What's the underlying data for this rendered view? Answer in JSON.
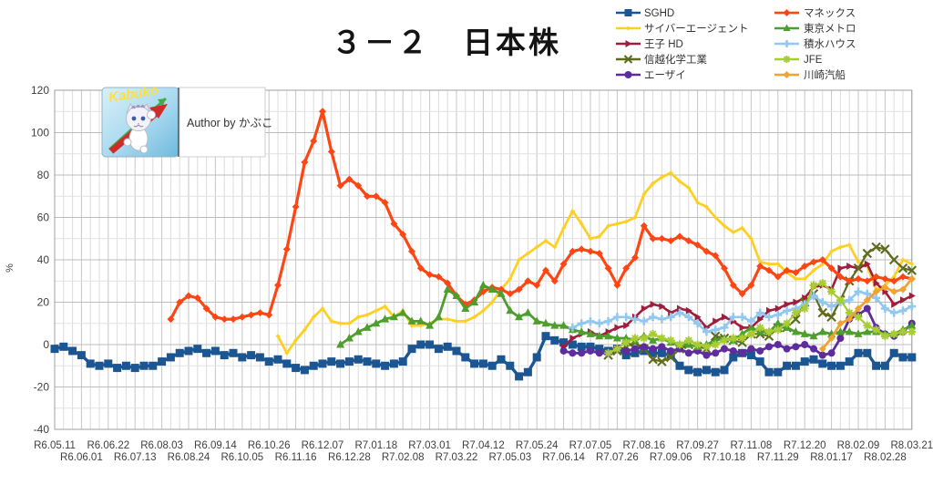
{
  "title": "３－２　日本株",
  "logo": {
    "badge_text": "Kabuko",
    "author_text": "Author by かぶこ"
  },
  "chart_data": {
    "type": "line",
    "title": "３－２　日本株",
    "xlabel": "",
    "ylabel": "%",
    "ylim": [
      -40,
      120
    ],
    "ytick_step": 20,
    "y_minor_step": 10,
    "grid": true,
    "legend_position": "top-right",
    "n_points": 97,
    "x_label_every": 3,
    "x_labels": [
      "R6.05.11",
      "R6.06.01",
      "R6.06.22",
      "R6.07.13",
      "R6.08.03",
      "R6.08.24",
      "R6.09.14",
      "R6.10.05",
      "R6.10.26",
      "R6.11.16",
      "R6.12.07",
      "R6.12.28",
      "R7.01.18",
      "R7.02.08",
      "R7.03.01",
      "R7.03.22",
      "R7.04.12",
      "R7.05.03",
      "R7.05.24",
      "R7.06.14",
      "R7.07.05",
      "R7.07.26",
      "R7.08.16",
      "R7.09.06",
      "R7.09.27",
      "R7.10.18",
      "R7.11.08",
      "R7.11.29",
      "R7.12.20",
      "R8.01.17",
      "R8.02.09",
      "R8.02.28",
      "R8.03.21"
    ],
    "series": [
      {
        "key": "sghd",
        "name": "SGHD",
        "color": "#1b5693",
        "marker": "square",
        "line_width": 3.4,
        "marker_size": 9,
        "start": 0,
        "values": [
          -2,
          -1,
          -3,
          -5,
          -9,
          -10,
          -9,
          -11,
          -10,
          -11,
          -10,
          -10,
          -8,
          -6,
          -4,
          -3,
          -2,
          -4,
          -3,
          -5,
          -4,
          -6,
          -5,
          -6,
          -8,
          -7,
          -9,
          -11,
          -12,
          -10,
          -9,
          -8,
          -9,
          -8,
          -7,
          -8,
          -9,
          -10,
          -9,
          -8,
          -2,
          0,
          0,
          -2,
          -1,
          -3,
          -6,
          -9,
          -9,
          -10,
          -7,
          -10,
          -15,
          -13,
          -6,
          4,
          2,
          1,
          0,
          -1,
          -1,
          -2,
          -3,
          -2,
          -5,
          -4,
          -3,
          -4,
          -4,
          -5,
          -10,
          -12,
          -13,
          -12,
          -13,
          -12,
          -6,
          -4,
          -5,
          -8,
          -13,
          -13,
          -10,
          -10,
          -8,
          -7,
          -9,
          -10,
          -10,
          -8,
          -4,
          -4,
          -10,
          -10,
          -4,
          -6,
          -6
        ]
      },
      {
        "key": "cyber_agent",
        "name": "サイバーエージェント",
        "color": "#fdd023",
        "marker": "diamond-small",
        "line_width": 2.8,
        "marker_size": 5,
        "start": 25,
        "values": [
          4,
          -4,
          2,
          7,
          13,
          17,
          11,
          10,
          10,
          13,
          14,
          16,
          18,
          13,
          16,
          9,
          9,
          10,
          12,
          12,
          11,
          11,
          13,
          16,
          20,
          26,
          31,
          40,
          43,
          46,
          49,
          46,
          55,
          63,
          57,
          50,
          51,
          56,
          57,
          58,
          60,
          71,
          76,
          79,
          81,
          77,
          74,
          67,
          65,
          60,
          56,
          53,
          55,
          50,
          39,
          38,
          38,
          34,
          31,
          31,
          35,
          38,
          44,
          46,
          47,
          39,
          37,
          26,
          28,
          32,
          40,
          38
        ]
      },
      {
        "key": "oji_hd",
        "name": "王子 HD",
        "color": "#9e1f3d",
        "marker": "triangle-right",
        "line_width": 2.6,
        "marker_size": 8,
        "start": 57,
        "values": [
          -1,
          3,
          5,
          6,
          4,
          6,
          8,
          9,
          13,
          17,
          19,
          18,
          15,
          17,
          16,
          13,
          8,
          11,
          13,
          11,
          8,
          8,
          12,
          16,
          17,
          19,
          20,
          22,
          27,
          28,
          26,
          36,
          37,
          36,
          38,
          29,
          25,
          19,
          21,
          23
        ]
      },
      {
        "key": "shinetsu_chemical",
        "name": "信越化学工業",
        "color": "#5f6b1d",
        "marker": "x",
        "line_width": 2.2,
        "marker_size": 9,
        "start": 62,
        "values": [
          -5,
          -3,
          -1,
          1,
          -2,
          -7,
          -8,
          -6,
          -2,
          0,
          -1,
          -2,
          4,
          3,
          2,
          1,
          5,
          5,
          4,
          8,
          8,
          12,
          20,
          24,
          15,
          13,
          21,
          30,
          36,
          43,
          46,
          45,
          40,
          36,
          35
        ]
      },
      {
        "key": "eisai",
        "name": "エーザイ",
        "color": "#5e2c9c",
        "marker": "circle",
        "line_width": 2.8,
        "marker_size": 8,
        "start": 57,
        "values": [
          -3,
          -4,
          -4,
          -3,
          -4,
          -4,
          -2,
          -3,
          -2,
          -1,
          -2,
          -1,
          -3,
          -2,
          -4,
          -3,
          -5,
          -4,
          -2,
          -3,
          -4,
          -2,
          -3,
          -1,
          0,
          -2,
          -1,
          0,
          -2,
          -5,
          -4,
          3,
          12,
          14,
          17,
          8,
          5,
          4,
          6,
          10
        ]
      },
      {
        "key": "monex",
        "name": "マネックス",
        "color": "#fd4614",
        "marker": "diamond",
        "line_width": 3.2,
        "marker_size": 8,
        "start": 13,
        "values": [
          12,
          20,
          23,
          22,
          17,
          13,
          12,
          12,
          13,
          14,
          15,
          14,
          28,
          45,
          65,
          86,
          96,
          110,
          91,
          75,
          78,
          75,
          70,
          70,
          67,
          57,
          52,
          44,
          36,
          33,
          32,
          29,
          23,
          19,
          21,
          25,
          27,
          26,
          24,
          26,
          30,
          28,
          35,
          30,
          38,
          44,
          45,
          44,
          43,
          36,
          28,
          36,
          41,
          56,
          50,
          50,
          49,
          51,
          49,
          47,
          44,
          42,
          36,
          28,
          24,
          28,
          37,
          35,
          32,
          35,
          34,
          37,
          39,
          40,
          36,
          32,
          30,
          31,
          30,
          32,
          31,
          30,
          32,
          31
        ]
      },
      {
        "key": "tokyo_metro",
        "name": "東京メトロ",
        "color": "#4d9e2d",
        "marker": "triangle-up",
        "line_width": 2.8,
        "marker_size": 9,
        "start": 32,
        "values": [
          0,
          3,
          6,
          8,
          10,
          12,
          13,
          15,
          11,
          11,
          9,
          13,
          26,
          23,
          17,
          20,
          28,
          26,
          24,
          16,
          13,
          15,
          11,
          10,
          9,
          9,
          7,
          6,
          5,
          4,
          4,
          3,
          3,
          2,
          4,
          2,
          3,
          1,
          0,
          0,
          -1,
          0,
          2,
          3,
          2,
          5,
          8,
          6,
          6,
          10,
          8,
          6,
          5,
          4,
          6,
          5,
          6,
          6,
          5,
          6,
          6,
          5,
          5,
          7,
          9
        ]
      },
      {
        "key": "sekisui_house",
        "name": "積水ハウス",
        "color": "#92c7f0",
        "marker": "plus",
        "line_width": 2.6,
        "marker_size": 9,
        "start": 58,
        "values": [
          8,
          10,
          11,
          10,
          11,
          13,
          13,
          12,
          11,
          13,
          12,
          13,
          15,
          13,
          10,
          6,
          7,
          8,
          13,
          13,
          11,
          15,
          13,
          14,
          16,
          17,
          19,
          23,
          20,
          18,
          20,
          21,
          25,
          24,
          22,
          17,
          15,
          16,
          18
        ]
      },
      {
        "key": "jfe",
        "name": "JFE",
        "color": "#a8cc33",
        "marker": "asterisk",
        "line_width": 2.2,
        "marker_size": 9,
        "start": 62,
        "values": [
          -4,
          -2,
          1,
          3,
          3,
          5,
          3,
          2,
          0,
          2,
          0,
          -1,
          0,
          2,
          3,
          3,
          5,
          8,
          6,
          7,
          10,
          15,
          17,
          28,
          29,
          25,
          21,
          15,
          13,
          9,
          7,
          4,
          5,
          6,
          6
        ]
      },
      {
        "key": "kawasaki_kisen",
        "name": "川崎汽船",
        "color": "#f0a232",
        "marker": "diamond",
        "line_width": 2.8,
        "marker_size": 8,
        "start": 86,
        "values": [
          -2,
          3,
          10,
          12,
          17,
          21,
          25,
          27,
          25,
          26,
          31
        ]
      }
    ]
  }
}
